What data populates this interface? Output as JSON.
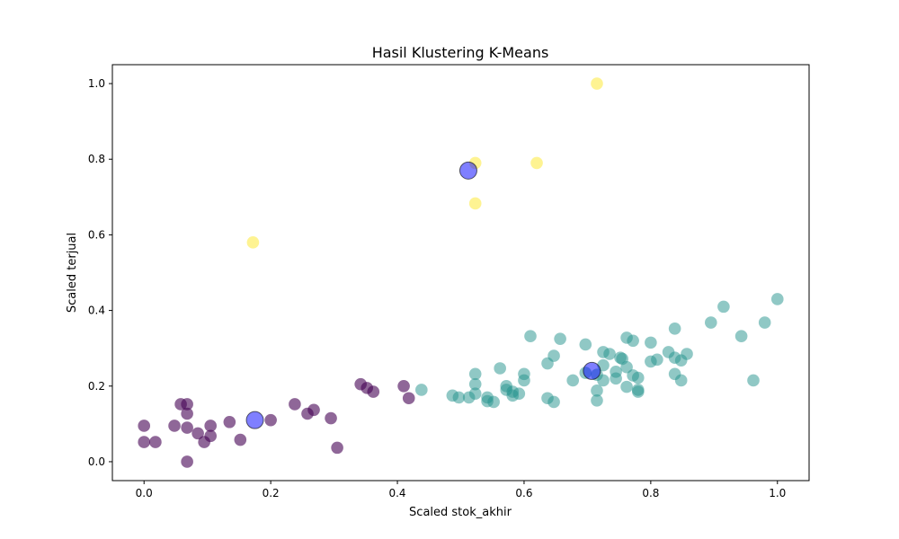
{
  "chart_data": {
    "type": "scatter",
    "title": "Hasil Klustering K-Means",
    "xlabel": "Scaled stok_akhir",
    "ylabel": "Scaled terjual",
    "xlim": [
      -0.05,
      1.05
    ],
    "ylim": [
      -0.05,
      1.05
    ],
    "xticks": [
      "0.0",
      "0.2",
      "0.4",
      "0.6",
      "0.8",
      "1.0"
    ],
    "yticks": [
      "0.0",
      "0.2",
      "0.4",
      "0.6",
      "0.8",
      "1.0"
    ],
    "grid": false,
    "legend": "none",
    "series": [
      {
        "cluster": 0,
        "color": "#440154",
        "opacity": 0.6,
        "points": [
          [
            0.0,
            0.095
          ],
          [
            0.0,
            0.052
          ],
          [
            0.018,
            0.052
          ],
          [
            0.048,
            0.095
          ],
          [
            0.058,
            0.152
          ],
          [
            0.068,
            0.152
          ],
          [
            0.068,
            0.127
          ],
          [
            0.068,
            0.09
          ],
          [
            0.068,
            0.0
          ],
          [
            0.085,
            0.075
          ],
          [
            0.095,
            0.052
          ],
          [
            0.105,
            0.095
          ],
          [
            0.105,
            0.068
          ],
          [
            0.135,
            0.105
          ],
          [
            0.152,
            0.058
          ],
          [
            0.2,
            0.11
          ],
          [
            0.238,
            0.152
          ],
          [
            0.258,
            0.127
          ],
          [
            0.268,
            0.137
          ],
          [
            0.295,
            0.115
          ],
          [
            0.305,
            0.037
          ],
          [
            0.342,
            0.205
          ],
          [
            0.352,
            0.195
          ],
          [
            0.362,
            0.185
          ],
          [
            0.41,
            0.2
          ],
          [
            0.418,
            0.168
          ]
        ]
      },
      {
        "cluster": 1,
        "color": "#21918c",
        "opacity": 0.5,
        "points": [
          [
            0.438,
            0.19
          ],
          [
            0.487,
            0.175
          ],
          [
            0.497,
            0.17
          ],
          [
            0.513,
            0.17
          ],
          [
            0.523,
            0.18
          ],
          [
            0.523,
            0.205
          ],
          [
            0.523,
            0.232
          ],
          [
            0.542,
            0.16
          ],
          [
            0.542,
            0.17
          ],
          [
            0.552,
            0.158
          ],
          [
            0.562,
            0.247
          ],
          [
            0.572,
            0.2
          ],
          [
            0.572,
            0.19
          ],
          [
            0.582,
            0.185
          ],
          [
            0.582,
            0.175
          ],
          [
            0.592,
            0.18
          ],
          [
            0.6,
            0.232
          ],
          [
            0.6,
            0.215
          ],
          [
            0.61,
            0.332
          ],
          [
            0.637,
            0.26
          ],
          [
            0.637,
            0.168
          ],
          [
            0.647,
            0.158
          ],
          [
            0.647,
            0.28
          ],
          [
            0.657,
            0.325
          ],
          [
            0.677,
            0.215
          ],
          [
            0.697,
            0.31
          ],
          [
            0.697,
            0.235
          ],
          [
            0.715,
            0.188
          ],
          [
            0.715,
            0.162
          ],
          [
            0.715,
            0.23
          ],
          [
            0.725,
            0.29
          ],
          [
            0.725,
            0.255
          ],
          [
            0.725,
            0.215
          ],
          [
            0.735,
            0.285
          ],
          [
            0.745,
            0.22
          ],
          [
            0.745,
            0.238
          ],
          [
            0.752,
            0.275
          ],
          [
            0.755,
            0.272
          ],
          [
            0.762,
            0.328
          ],
          [
            0.762,
            0.25
          ],
          [
            0.762,
            0.198
          ],
          [
            0.772,
            0.32
          ],
          [
            0.772,
            0.228
          ],
          [
            0.78,
            0.222
          ],
          [
            0.78,
            0.19
          ],
          [
            0.78,
            0.185
          ],
          [
            0.8,
            0.315
          ],
          [
            0.8,
            0.265
          ],
          [
            0.81,
            0.27
          ],
          [
            0.828,
            0.29
          ],
          [
            0.838,
            0.352
          ],
          [
            0.838,
            0.275
          ],
          [
            0.838,
            0.232
          ],
          [
            0.848,
            0.268
          ],
          [
            0.848,
            0.215
          ],
          [
            0.857,
            0.285
          ],
          [
            0.895,
            0.368
          ],
          [
            0.915,
            0.41
          ],
          [
            0.943,
            0.332
          ],
          [
            0.962,
            0.215
          ],
          [
            0.98,
            0.368
          ],
          [
            1.0,
            0.43
          ]
        ]
      },
      {
        "cluster": 2,
        "color": "#fde725",
        "opacity": 0.5,
        "points": [
          [
            0.172,
            0.58
          ],
          [
            0.523,
            0.79
          ],
          [
            0.523,
            0.683
          ],
          [
            0.62,
            0.79
          ],
          [
            0.715,
            1.0
          ]
        ]
      }
    ],
    "centroids": {
      "color": "#0000ff",
      "opacity": 0.5,
      "points": [
        [
          0.175,
          0.11
        ],
        [
          0.512,
          0.77
        ],
        [
          0.707,
          0.24
        ]
      ]
    }
  }
}
